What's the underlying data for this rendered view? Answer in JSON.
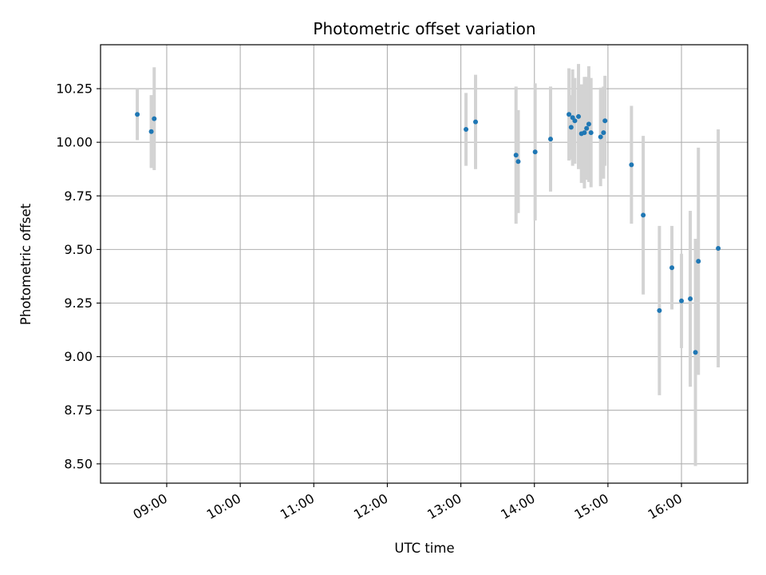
{
  "chart_data": {
    "type": "scatter",
    "title": "Photometric offset variation",
    "xlabel": "UTC time",
    "ylabel": "Photometric offset",
    "grid": true,
    "x_unit": "UTC time (hours)",
    "xlim": [
      8.1,
      16.9
    ],
    "ylim": [
      8.41,
      10.455
    ],
    "xticks": [
      9,
      10,
      11,
      12,
      13,
      14,
      15,
      16
    ],
    "xtick_labels": [
      "09:00",
      "10:00",
      "11:00",
      "12:00",
      "13:00",
      "14:00",
      "15:00",
      "16:00"
    ],
    "yticks": [
      8.5,
      8.75,
      9.0,
      9.25,
      9.5,
      9.75,
      10.0,
      10.25
    ],
    "ytick_labels": [
      "8.50",
      "8.75",
      "9.00",
      "9.25",
      "9.50",
      "9.75",
      "10.00",
      "10.25"
    ],
    "colors": {
      "point": "#1f77b4",
      "errorbar": "#d3d3d3",
      "grid": "#b0b0b0"
    },
    "points": [
      {
        "x": 8.6,
        "y": 10.13,
        "err": 0.12
      },
      {
        "x": 8.79,
        "y": 10.05,
        "err": 0.17
      },
      {
        "x": 8.83,
        "y": 10.11,
        "err": 0.24
      },
      {
        "x": 13.07,
        "y": 10.06,
        "err": 0.17
      },
      {
        "x": 13.2,
        "y": 10.095,
        "err": 0.22
      },
      {
        "x": 13.75,
        "y": 9.94,
        "err": 0.32
      },
      {
        "x": 13.78,
        "y": 9.91,
        "err": 0.24
      },
      {
        "x": 14.01,
        "y": 9.955,
        "err": 0.32
      },
      {
        "x": 14.22,
        "y": 10.015,
        "err": 0.245
      },
      {
        "x": 14.47,
        "y": 10.13,
        "err": 0.215
      },
      {
        "x": 14.5,
        "y": 10.07,
        "err": 0.15
      },
      {
        "x": 14.52,
        "y": 10.115,
        "err": 0.225
      },
      {
        "x": 14.55,
        "y": 10.1,
        "err": 0.2
      },
      {
        "x": 14.6,
        "y": 10.12,
        "err": 0.245
      },
      {
        "x": 14.64,
        "y": 10.04,
        "err": 0.23
      },
      {
        "x": 14.68,
        "y": 10.045,
        "err": 0.26
      },
      {
        "x": 14.71,
        "y": 10.065,
        "err": 0.24
      },
      {
        "x": 14.74,
        "y": 10.085,
        "err": 0.27
      },
      {
        "x": 14.77,
        "y": 10.045,
        "err": 0.255
      },
      {
        "x": 14.9,
        "y": 10.025,
        "err": 0.23
      },
      {
        "x": 14.94,
        "y": 10.045,
        "err": 0.215
      },
      {
        "x": 14.96,
        "y": 10.1,
        "err": 0.21
      },
      {
        "x": 15.32,
        "y": 9.895,
        "err": 0.275
      },
      {
        "x": 15.48,
        "y": 9.66,
        "err": 0.37
      },
      {
        "x": 15.7,
        "y": 9.215,
        "err": 0.395
      },
      {
        "x": 15.87,
        "y": 9.415,
        "err": 0.195
      },
      {
        "x": 16.0,
        "y": 9.26,
        "err": 0.22
      },
      {
        "x": 16.12,
        "y": 9.27,
        "err": 0.41
      },
      {
        "x": 16.19,
        "y": 9.02,
        "err": 0.53
      },
      {
        "x": 16.23,
        "y": 9.445,
        "err": 0.53
      },
      {
        "x": 16.5,
        "y": 9.505,
        "err": 0.555
      }
    ]
  }
}
